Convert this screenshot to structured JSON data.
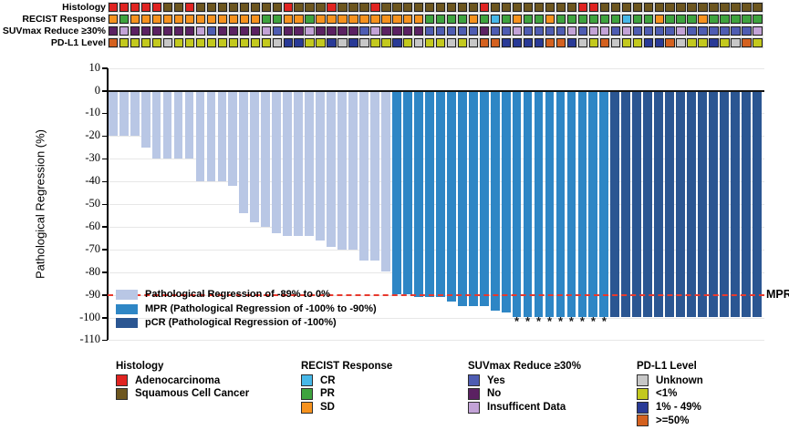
{
  "annotation_tracks": {
    "palette": {
      "adeno": "#e02421",
      "squam": "#6d561f",
      "CR": "#47b8e8",
      "PR": "#3ea33e",
      "SD": "#f6921e",
      "yes": "#4e5cb2",
      "no": "#5b2162",
      "insuf": "#c3a3d7",
      "unknown": "#c7c7c7",
      "lt1": "#c3c91e",
      "p1_49": "#293a96",
      "ge50": "#d4611f"
    },
    "rows": [
      {
        "label": "Histology",
        "cells": [
          "adeno",
          "adeno",
          "adeno",
          "adeno",
          "adeno",
          "squam",
          "squam",
          "adeno",
          "squam",
          "squam",
          "squam",
          "squam",
          "squam",
          "squam",
          "squam",
          "squam",
          "adeno",
          "squam",
          "squam",
          "squam",
          "adeno",
          "squam",
          "squam",
          "squam",
          "adeno",
          "squam",
          "squam",
          "squam",
          "squam",
          "squam",
          "squam",
          "squam",
          "squam",
          "squam",
          "adeno",
          "squam",
          "squam",
          "squam",
          "squam",
          "squam",
          "squam",
          "squam",
          "squam",
          "adeno",
          "adeno",
          "squam",
          "squam",
          "squam",
          "squam",
          "squam",
          "squam",
          "squam",
          "squam",
          "squam",
          "squam",
          "squam",
          "squam",
          "squam",
          "squam",
          "squam"
        ]
      },
      {
        "label": "RECIST Response",
        "cells": [
          "SD",
          "PR",
          "SD",
          "SD",
          "SD",
          "SD",
          "SD",
          "SD",
          "SD",
          "SD",
          "SD",
          "SD",
          "SD",
          "SD",
          "PR",
          "PR",
          "SD",
          "SD",
          "PR",
          "SD",
          "SD",
          "SD",
          "SD",
          "SD",
          "SD",
          "SD",
          "SD",
          "SD",
          "SD",
          "PR",
          "PR",
          "PR",
          "PR",
          "SD",
          "PR",
          "CR",
          "PR",
          "SD",
          "PR",
          "PR",
          "SD",
          "PR",
          "PR",
          "PR",
          "PR",
          "PR",
          "PR",
          "CR",
          "PR",
          "PR",
          "SD",
          "PR",
          "PR",
          "PR",
          "SD",
          "PR",
          "PR",
          "PR",
          "PR",
          "PR"
        ]
      },
      {
        "label": "SUVmax Reduce ≥30%",
        "cells": [
          "no",
          "insuf",
          "no",
          "no",
          "no",
          "no",
          "no",
          "no",
          "insuf",
          "yes",
          "no",
          "no",
          "no",
          "no",
          "insuf",
          "yes",
          "no",
          "no",
          "insuf",
          "no",
          "no",
          "no",
          "no",
          "yes",
          "insuf",
          "no",
          "no",
          "no",
          "no",
          "yes",
          "yes",
          "yes",
          "yes",
          "yes",
          "no",
          "yes",
          "yes",
          "insuf",
          "yes",
          "yes",
          "yes",
          "yes",
          "insuf",
          "yes",
          "insuf",
          "insuf",
          "yes",
          "insuf",
          "yes",
          "yes",
          "yes",
          "yes",
          "insuf",
          "yes",
          "yes",
          "yes",
          "yes",
          "yes",
          "yes",
          "insuf"
        ]
      },
      {
        "label": "PD-L1 Level",
        "cells": [
          "ge50",
          "lt1",
          "lt1",
          "lt1",
          "lt1",
          "unknown",
          "lt1",
          "lt1",
          "lt1",
          "lt1",
          "lt1",
          "lt1",
          "lt1",
          "lt1",
          "lt1",
          "unknown",
          "p1_49",
          "p1_49",
          "lt1",
          "lt1",
          "p1_49",
          "unknown",
          "p1_49",
          "unknown",
          "lt1",
          "lt1",
          "p1_49",
          "lt1",
          "unknown",
          "lt1",
          "lt1",
          "unknown",
          "lt1",
          "unknown",
          "ge50",
          "ge50",
          "p1_49",
          "p1_49",
          "p1_49",
          "p1_49",
          "ge50",
          "ge50",
          "p1_49",
          "unknown",
          "lt1",
          "ge50",
          "unknown",
          "lt1",
          "lt1",
          "p1_49",
          "p1_49",
          "ge50",
          "unknown",
          "lt1",
          "lt1",
          "p1_49",
          "lt1",
          "unknown",
          "ge50",
          "lt1"
        ]
      }
    ]
  },
  "chart_data": {
    "type": "bar",
    "title": "",
    "xlabel": "",
    "ylabel": "Pathological Regression (%)",
    "ylim": [
      -110,
      10
    ],
    "yticks": [
      10,
      0,
      -10,
      -20,
      -30,
      -40,
      -50,
      -60,
      -70,
      -80,
      -90,
      -100,
      -110
    ],
    "grid": "horizontal",
    "values": [
      -20,
      -20,
      -20,
      -25,
      -30,
      -30,
      -30,
      -30,
      -40,
      -40,
      -40,
      -42,
      -54,
      -58,
      -60,
      -63,
      -64,
      -64,
      -64,
      -66,
      -69,
      -70,
      -70,
      -75,
      -75,
      -80,
      -90,
      -90,
      -91,
      -91,
      -91,
      -93,
      -95,
      -95,
      -95,
      -97,
      -98,
      -100,
      -100,
      -100,
      -100,
      -100,
      -100,
      -100,
      -100,
      -100,
      -100,
      -100,
      -100,
      -100,
      -100,
      -100,
      -100,
      -100,
      -100,
      -100,
      -100,
      -100,
      -100,
      -100
    ],
    "segments": [
      {
        "name": "partial",
        "count": 26,
        "color": "#b9c7e5"
      },
      {
        "name": "mpr",
        "count": 20,
        "color": "#2e86c5"
      },
      {
        "name": "pcr",
        "count": 14,
        "color": "#2b5692"
      }
    ],
    "series_legend": [
      {
        "label": "Pathological Regression of -89% to 0%",
        "color": "#b9c7e5"
      },
      {
        "label": "MPR (Pathological Regression of -100% to -90%)",
        "color": "#2e86c5"
      },
      {
        "label": "pCR (Pathological Regression of -100%)",
        "color": "#2b5692"
      }
    ],
    "mpr_line": {
      "y": -90,
      "label": "MPR",
      "color": "#e8392d"
    },
    "asterisk_bars": [
      38,
      39,
      40,
      41,
      42,
      43,
      44,
      45,
      46
    ],
    "asterisk_glyph": "*"
  },
  "legends": [
    {
      "title": "Histology",
      "items": [
        {
          "label": "Adenocarcinoma",
          "color": "#e02421"
        },
        {
          "label": "Squamous Cell Cancer",
          "color": "#6d561f"
        }
      ]
    },
    {
      "title": "RECIST Response",
      "items": [
        {
          "label": "CR",
          "color": "#47b8e8"
        },
        {
          "label": "PR",
          "color": "#3ea33e"
        },
        {
          "label": "SD",
          "color": "#f6921e"
        }
      ]
    },
    {
      "title": "SUVmax Reduce ≥30%",
      "items": [
        {
          "label": "Yes",
          "color": "#4e5cb2"
        },
        {
          "label": "No",
          "color": "#5b2162"
        },
        {
          "label": "Insufficent Data",
          "color": "#c3a3d7"
        }
      ]
    },
    {
      "title": "PD-L1 Level",
      "items": [
        {
          "label": "Unknown",
          "color": "#c7c7c7"
        },
        {
          "label": "<1%",
          "color": "#c3c91e"
        },
        {
          "label": "1% - 49%",
          "color": "#293a96"
        },
        {
          "label": ">=50%",
          "color": "#d4611f"
        }
      ]
    }
  ]
}
